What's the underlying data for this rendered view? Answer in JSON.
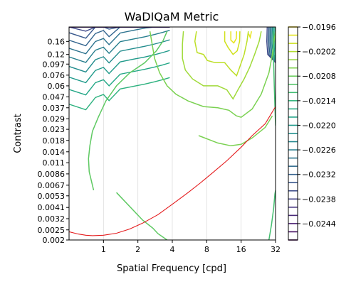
{
  "chart_data": {
    "type": "contour",
    "title": "WaDIQaM Metric",
    "xlabel": "Spatial Frequency [cpd]",
    "ylabel": "Contrast",
    "xscale": "log2",
    "yscale": "log",
    "xlim": [
      0.5,
      32
    ],
    "ylim": [
      0.002,
      0.22
    ],
    "x_ticks": [
      "1",
      "2",
      "4",
      "8",
      "16",
      "32"
    ],
    "y_ticks": [
      "0.002",
      "0.0025",
      "0.0032",
      "0.0041",
      "0.0053",
      "0.0067",
      "0.0086",
      "0.011",
      "0.014",
      "0.018",
      "0.023",
      "0.029",
      "0.037",
      "0.047",
      "0.06",
      "0.076",
      "0.097",
      "0.12",
      "0.16"
    ],
    "grid": "vertical lines at x ticks",
    "colormap": "viridis",
    "colorbar": {
      "min": -0.0248,
      "max": -0.0196,
      "step": 0.0002,
      "tick_labels": [
        "−0.0196",
        "−0.0202",
        "−0.0208",
        "−0.0214",
        "−0.0220",
        "−0.0226",
        "−0.0232",
        "−0.0238",
        "−0.0244"
      ]
    },
    "contour_paths": [
      {
        "level": -0.0208,
        "color": "#5ec962",
        "points": [
          [
            0.82,
            0.006
          ],
          [
            0.75,
            0.009
          ],
          [
            0.74,
            0.012
          ],
          [
            0.76,
            0.016
          ],
          [
            0.8,
            0.022
          ],
          [
            0.9,
            0.03
          ],
          [
            1.05,
            0.043
          ],
          [
            1.3,
            0.06
          ],
          [
            1.7,
            0.08
          ],
          [
            2.3,
            0.1
          ],
          [
            2.9,
            0.13
          ],
          [
            3.3,
            0.16
          ],
          [
            3.6,
            0.2
          ]
        ]
      },
      {
        "level": -0.0208,
        "color": "#5ec962",
        "points": [
          [
            1.3,
            0.0057
          ],
          [
            2.2,
            0.0031
          ],
          [
            2.7,
            0.0026
          ],
          [
            3.0,
            0.0023
          ],
          [
            3.6,
            0.002
          ]
        ]
      },
      {
        "level": -0.0206,
        "color": "#7ad151",
        "points": [
          [
            2.55,
            0.2
          ],
          [
            2.8,
            0.11
          ],
          [
            3.1,
            0.08
          ],
          [
            3.6,
            0.06
          ],
          [
            4.3,
            0.05
          ],
          [
            5.5,
            0.043
          ],
          [
            7.5,
            0.038
          ],
          [
            10,
            0.037
          ],
          [
            12.5,
            0.035
          ],
          [
            14.5,
            0.031
          ],
          [
            16,
            0.03
          ],
          [
            20,
            0.036
          ],
          [
            24,
            0.05
          ],
          [
            28,
            0.08
          ],
          [
            30,
            0.12
          ],
          [
            31,
            0.16
          ],
          [
            32,
            0.2
          ]
        ]
      },
      {
        "level": -0.0206,
        "color": "#7ad151",
        "points": [
          [
            6.8,
            0.02
          ],
          [
            10,
            0.017
          ],
          [
            13,
            0.016
          ],
          [
            16,
            0.0165
          ],
          [
            20,
            0.019
          ],
          [
            26,
            0.024
          ],
          [
            30,
            0.031
          ]
        ]
      },
      {
        "level": -0.0204,
        "color": "#a0da39",
        "points": [
          [
            5.0,
            0.2
          ],
          [
            4.9,
            0.15
          ],
          [
            4.9,
            0.11
          ],
          [
            5.2,
            0.085
          ],
          [
            6.0,
            0.07
          ],
          [
            7.5,
            0.06
          ],
          [
            10,
            0.06
          ],
          [
            12,
            0.055
          ],
          [
            13.6,
            0.045
          ],
          [
            15,
            0.055
          ],
          [
            17,
            0.07
          ],
          [
            19,
            0.09
          ],
          [
            21,
            0.12
          ],
          [
            23,
            0.16
          ],
          [
            24,
            0.2
          ]
        ]
      },
      {
        "level": -0.0202,
        "color": "#bddf26",
        "points": [
          [
            6.5,
            0.2
          ],
          [
            6.3,
            0.16
          ],
          [
            6.6,
            0.125
          ],
          [
            7.5,
            0.12
          ],
          [
            8.1,
            0.105
          ],
          [
            9.5,
            0.1
          ],
          [
            11.5,
            0.1
          ],
          [
            13,
            0.085
          ],
          [
            14.6,
            0.075
          ],
          [
            15.5,
            0.09
          ],
          [
            17,
            0.12
          ],
          [
            18,
            0.16
          ],
          [
            18.5,
            0.2
          ]
        ]
      },
      {
        "level": -0.02,
        "color": "#d0e11c",
        "points": [
          [
            11.5,
            0.2
          ],
          [
            11.5,
            0.16
          ],
          [
            12.3,
            0.14
          ],
          [
            13.6,
            0.12
          ],
          [
            14.8,
            0.13
          ],
          [
            15.5,
            0.16
          ],
          [
            15.6,
            0.2
          ]
        ]
      },
      {
        "level": -0.0198,
        "color": "#e7e419",
        "points": [
          [
            13.0,
            0.2
          ],
          [
            13.0,
            0.165
          ],
          [
            13.8,
            0.155
          ],
          [
            14.5,
            0.17
          ],
          [
            14.6,
            0.2
          ]
        ]
      },
      {
        "level": -0.0198,
        "color": "#e7e419",
        "points": [
          [
            18.6,
            0.19
          ],
          [
            19.2,
            0.175
          ],
          [
            19.7,
            0.2
          ]
        ]
      },
      {
        "level": -0.021,
        "color": "#44bf70",
        "points": [
          [
            28,
            0.002
          ],
          [
            29.5,
            0.0028
          ],
          [
            30.8,
            0.004
          ],
          [
            31.6,
            0.0055
          ],
          [
            32,
            0.006
          ]
        ]
      },
      {
        "level": -0.021,
        "color": "#44bf70",
        "points": [
          [
            32,
            0.025
          ],
          [
            31.2,
            0.06
          ],
          [
            30.7,
            0.12
          ],
          [
            30.5,
            0.2
          ]
        ]
      }
    ],
    "upper_band_colors": [
      "#2cb17e",
      "#21a685",
      "#1f9a8a",
      "#228c8d",
      "#277f8e",
      "#2c728e",
      "#32648e",
      "#38588c",
      "#3e4989",
      "#443983",
      "#472a7a",
      "#481a6c"
    ],
    "series": [
      {
        "name": "",
        "color": "#e41a1c",
        "x": [
          0.5,
          0.6,
          0.7,
          0.8,
          1.0,
          1.3,
          1.7,
          2.2,
          3,
          4,
          5.5,
          7,
          9,
          12,
          16,
          20,
          26,
          32
        ],
        "y": [
          0.0024,
          0.00228,
          0.00222,
          0.0022,
          0.00222,
          0.00232,
          0.00255,
          0.0029,
          0.0035,
          0.0044,
          0.0057,
          0.007,
          0.0088,
          0.0115,
          0.0155,
          0.02,
          0.026,
          0.038
        ]
      }
    ]
  }
}
